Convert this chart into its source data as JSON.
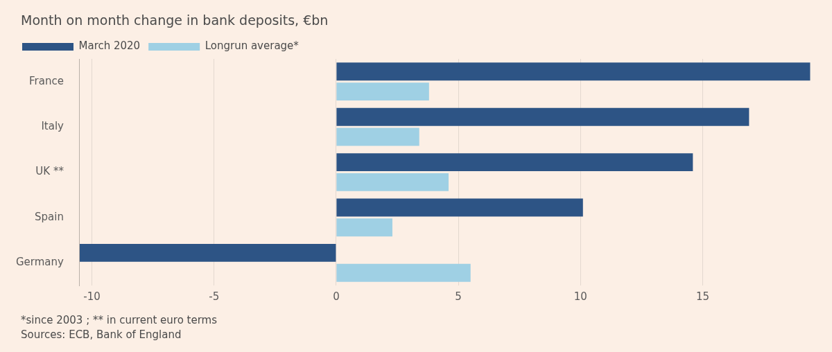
{
  "chart_data": {
    "type": "bar",
    "orientation": "horizontal",
    "title": "Month on month change in bank deposits, €bn",
    "categories": [
      "France",
      "Italy",
      "UK **",
      "Spain",
      "Germany"
    ],
    "series": [
      {
        "name": "March 2020",
        "color": "#2d5485",
        "values": [
          19.4,
          16.9,
          14.6,
          10.1,
          -10.5
        ]
      },
      {
        "name": "Longrun average*",
        "color": "#9fd0e4",
        "values": [
          3.8,
          3.4,
          4.6,
          2.3,
          5.5
        ]
      }
    ],
    "xlim": [
      -10.5,
      19.5
    ],
    "xticks": [
      -10,
      -5,
      0,
      5,
      10,
      15
    ],
    "grid": "x",
    "legend": "top left",
    "annotations": [
      "*since 2003 ; ** in current euro terms",
      "Sources: ECB, Bank of England"
    ]
  }
}
